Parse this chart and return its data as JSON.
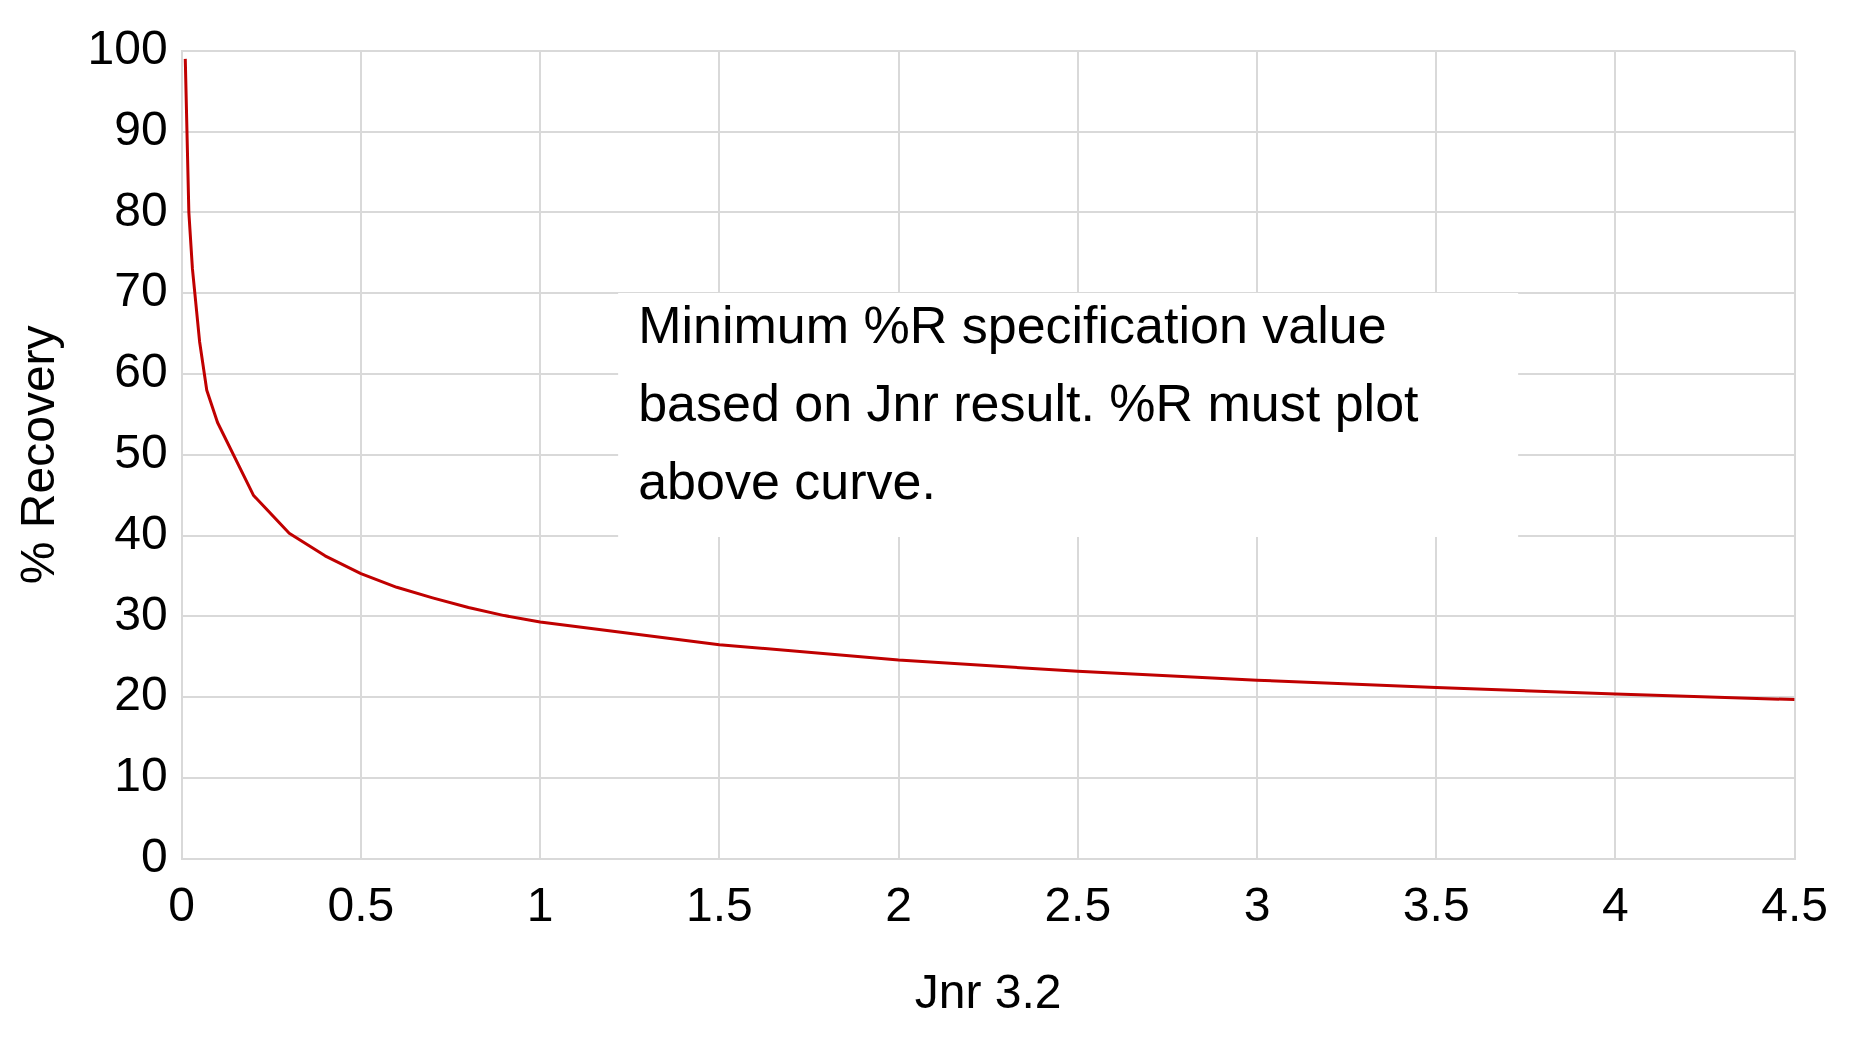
{
  "chart_data": {
    "type": "line",
    "xlabel": "Jnr 3.2",
    "ylabel": "% Recovery",
    "annotations": [
      "Minimum %R specification value based on Jnr result. %R must plot above curve."
    ],
    "x": [
      0.01,
      0.02,
      0.03,
      0.05,
      0.07,
      0.1,
      0.2,
      0.3,
      0.4,
      0.5,
      0.6,
      0.7,
      0.8,
      0.9,
      1,
      1.5,
      2,
      2.5,
      3,
      3.5,
      4,
      4.5
    ],
    "series": [
      {
        "color": "#c00000",
        "values": [
          99,
          80,
          73,
          64,
          58,
          54,
          45,
          40.3,
          37.5,
          35.3,
          33.6,
          32.3,
          31.1,
          30.1,
          29.3,
          26.5,
          24.6,
          23.2,
          22.1,
          21.2,
          20.4,
          19.7
        ]
      }
    ],
    "xlim": [
      0,
      4.5
    ],
    "xticks": [
      0,
      0.5,
      1,
      1.5,
      2,
      2.5,
      3,
      3.5,
      4,
      4.5
    ],
    "ylim": [
      0,
      100
    ],
    "yticks": [
      0,
      10,
      20,
      30,
      40,
      50,
      60,
      70,
      80,
      90,
      100
    ],
    "grid": true,
    "legend": false,
    "marker": "none",
    "line_style": "solid"
  }
}
